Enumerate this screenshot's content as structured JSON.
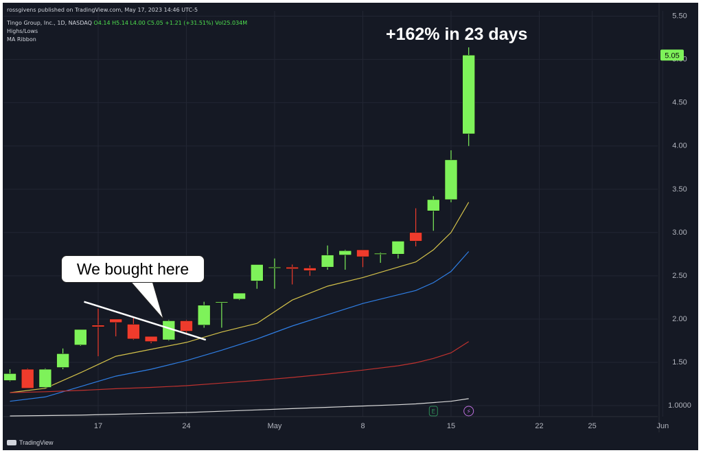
{
  "header": {
    "publisher": "rossgivens published on TradingView.com, May 17, 2023 14:46 UTC-5",
    "symbol_line": "Tingo Group, Inc., 1D, NASDAQ",
    "ohlc": {
      "o": "O4.14",
      "h": "H5.14",
      "l": "L4.00",
      "c": "C5.05",
      "chg": "+1.21 (+31.51%)",
      "vol": "Vol25.034M"
    },
    "indicator_1": "Highs/Lows",
    "indicator_2": "MA Ribbon"
  },
  "annotations": {
    "gain": "+162% in 23 days",
    "callout": "We bought here"
  },
  "brand": "TradingView",
  "colors": {
    "up": "#7ef25a",
    "down": "#ef3b2c",
    "ma1": "#d4c24a",
    "ma2": "#2f7fe6",
    "ma3": "#c0322f",
    "ma4": "#d9d9d9",
    "bg": "#151924"
  },
  "chart_data": {
    "type": "candlestick",
    "ylim": [
      0.88,
      5.5
    ],
    "y_ticks": [
      "1.0000",
      "1.50",
      "2.00",
      "2.50",
      "3.00",
      "3.50",
      "4.00",
      "4.50",
      "5.00",
      "5.50"
    ],
    "x_tick_labels": [
      {
        "label": "17",
        "x": 5
      },
      {
        "label": "24",
        "x": 10
      },
      {
        "label": "May",
        "x": 15
      },
      {
        "label": "8",
        "x": 20
      },
      {
        "label": "15",
        "x": 25
      },
      {
        "label": "22",
        "x": 30
      },
      {
        "label": "25",
        "x": 33
      },
      {
        "label": "Jun",
        "x": 37
      }
    ],
    "last_price": "5.05",
    "candles": [
      {
        "x": 0,
        "o": 1.29,
        "h": 1.42,
        "l": 1.28,
        "c": 1.37
      },
      {
        "x": 1,
        "o": 1.42,
        "h": 1.43,
        "l": 1.2,
        "c": 1.2
      },
      {
        "x": 2,
        "o": 1.21,
        "h": 1.43,
        "l": 1.2,
        "c": 1.42
      },
      {
        "x": 3,
        "o": 1.44,
        "h": 1.66,
        "l": 1.42,
        "c": 1.6
      },
      {
        "x": 4,
        "o": 1.7,
        "h": 1.88,
        "l": 1.69,
        "c": 1.88
      },
      {
        "x": 5,
        "o": 1.93,
        "h": 2.12,
        "l": 1.57,
        "c": 1.91
      },
      {
        "x": 6,
        "o": 2.0,
        "h": 2.0,
        "l": 1.8,
        "c": 1.96
      },
      {
        "x": 7,
        "o": 1.94,
        "h": 2.02,
        "l": 1.76,
        "c": 1.77
      },
      {
        "x": 8,
        "o": 1.8,
        "h": 1.8,
        "l": 1.72,
        "c": 1.74
      },
      {
        "x": 9,
        "o": 1.76,
        "h": 1.99,
        "l": 1.75,
        "c": 1.98
      },
      {
        "x": 10,
        "o": 1.98,
        "h": 1.99,
        "l": 1.84,
        "c": 1.86
      },
      {
        "x": 11,
        "o": 1.93,
        "h": 2.2,
        "l": 1.9,
        "c": 2.16
      },
      {
        "x": 12,
        "o": 2.19,
        "h": 2.2,
        "l": 1.9,
        "c": 2.2
      },
      {
        "x": 13,
        "o": 2.23,
        "h": 2.3,
        "l": 2.22,
        "c": 2.3
      },
      {
        "x": 14,
        "o": 2.44,
        "h": 2.63,
        "l": 2.35,
        "c": 2.63
      },
      {
        "x": 15,
        "o": 2.6,
        "h": 2.7,
        "l": 2.35,
        "c": 2.6
      },
      {
        "x": 16,
        "o": 2.6,
        "h": 2.63,
        "l": 2.4,
        "c": 2.58
      },
      {
        "x": 17,
        "o": 2.59,
        "h": 2.62,
        "l": 2.5,
        "c": 2.56
      },
      {
        "x": 18,
        "o": 2.6,
        "h": 2.85,
        "l": 2.57,
        "c": 2.74
      },
      {
        "x": 19,
        "o": 2.74,
        "h": 2.8,
        "l": 2.57,
        "c": 2.79
      },
      {
        "x": 20,
        "o": 2.8,
        "h": 2.8,
        "l": 2.6,
        "c": 2.72
      },
      {
        "x": 21,
        "o": 2.75,
        "h": 2.77,
        "l": 2.65,
        "c": 2.76
      },
      {
        "x": 22,
        "o": 2.75,
        "h": 2.9,
        "l": 2.7,
        "c": 2.9
      },
      {
        "x": 23,
        "o": 3.0,
        "h": 3.28,
        "l": 2.84,
        "c": 2.9
      },
      {
        "x": 24,
        "o": 3.25,
        "h": 3.42,
        "l": 3.02,
        "c": 3.38
      },
      {
        "x": 25,
        "o": 3.38,
        "h": 3.95,
        "l": 3.35,
        "c": 3.84
      },
      {
        "x": 26,
        "o": 4.14,
        "h": 5.14,
        "l": 4.0,
        "c": 5.05
      }
    ],
    "series": [
      {
        "name": "MA 1",
        "color": "#d4c24a",
        "x": [
          0,
          2,
          4,
          6,
          8,
          10,
          12,
          14,
          16,
          18,
          20,
          22,
          23,
          24,
          25,
          26
        ],
        "values": [
          1.15,
          1.2,
          1.38,
          1.57,
          1.65,
          1.73,
          1.85,
          1.95,
          2.22,
          2.38,
          2.48,
          2.6,
          2.66,
          2.8,
          3.0,
          3.35
        ]
      },
      {
        "name": "MA 2",
        "color": "#2f7fe6",
        "x": [
          0,
          2,
          4,
          6,
          8,
          10,
          12,
          14,
          16,
          18,
          20,
          22,
          23,
          24,
          25,
          26
        ],
        "values": [
          1.05,
          1.1,
          1.22,
          1.34,
          1.42,
          1.52,
          1.64,
          1.77,
          1.92,
          2.05,
          2.18,
          2.28,
          2.33,
          2.42,
          2.55,
          2.78
        ]
      },
      {
        "name": "MA 3",
        "color": "#c0322f",
        "x": [
          0,
          2,
          4,
          6,
          8,
          10,
          12,
          14,
          16,
          18,
          20,
          22,
          23,
          24,
          25,
          26
        ],
        "values": [
          1.15,
          1.16,
          1.175,
          1.195,
          1.21,
          1.23,
          1.26,
          1.29,
          1.325,
          1.365,
          1.41,
          1.46,
          1.495,
          1.545,
          1.61,
          1.74
        ]
      },
      {
        "name": "MA 4",
        "color": "#d9d9d9",
        "x": [
          0,
          2,
          4,
          6,
          8,
          10,
          12,
          14,
          16,
          18,
          20,
          22,
          23,
          24,
          25,
          26
        ],
        "values": [
          0.88,
          0.885,
          0.89,
          0.9,
          0.91,
          0.92,
          0.935,
          0.95,
          0.965,
          0.98,
          0.995,
          1.01,
          1.02,
          1.035,
          1.05,
          1.08
        ]
      }
    ],
    "events": [
      {
        "x": 24,
        "label": "E",
        "kind": "earnings"
      },
      {
        "x": 26,
        "label": "⚡",
        "kind": "flash"
      }
    ],
    "callout_line": {
      "x1": 4.2,
      "y1": 2.2,
      "x2": 11.1,
      "y2": 1.76
    }
  }
}
